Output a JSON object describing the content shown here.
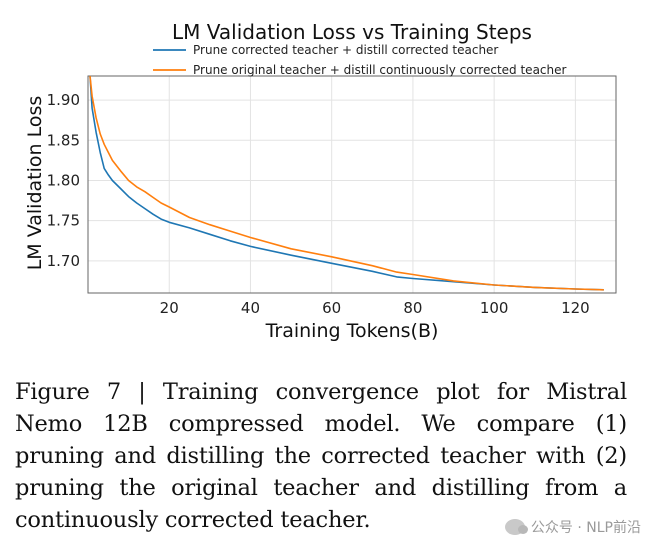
{
  "chart_data": {
    "type": "line",
    "title": "LM Validation Loss vs Training Steps",
    "xlabel": "Training Tokens(B)",
    "ylabel": "LM Validation Loss",
    "xlim": [
      0,
      130
    ],
    "ylim": [
      1.66,
      1.93
    ],
    "xticks": [
      20,
      40,
      60,
      80,
      100,
      120
    ],
    "yticks": [
      1.7,
      1.75,
      1.8,
      1.85,
      1.9
    ],
    "grid": true,
    "legend": "top",
    "series": [
      {
        "name": "Prune corrected teacher + distill corrected teacher",
        "color": "#1f77b4",
        "x": [
          0.5,
          1,
          2,
          3,
          4,
          5,
          6,
          8,
          10,
          12,
          14,
          16,
          18,
          20,
          25,
          30,
          35,
          40,
          50,
          60,
          70,
          76,
          80,
          90,
          100,
          110,
          120,
          127
        ],
        "y": [
          1.93,
          1.89,
          1.86,
          1.835,
          1.815,
          1.807,
          1.8,
          1.79,
          1.78,
          1.772,
          1.765,
          1.758,
          1.752,
          1.748,
          1.741,
          1.733,
          1.725,
          1.718,
          1.707,
          1.697,
          1.687,
          1.68,
          1.678,
          1.674,
          1.67,
          1.667,
          1.665,
          1.664
        ]
      },
      {
        "name": "Prune original teacher + distill continuously corrected teacher",
        "color": "#ff7f0e",
        "x": [
          0.5,
          1,
          2,
          3,
          4,
          5,
          6,
          8,
          10,
          12,
          14,
          16,
          18,
          20,
          25,
          30,
          35,
          40,
          50,
          60,
          70,
          76,
          80,
          90,
          100,
          110,
          120,
          127
        ],
        "y": [
          1.93,
          1.905,
          1.878,
          1.858,
          1.845,
          1.835,
          1.825,
          1.812,
          1.8,
          1.792,
          1.786,
          1.779,
          1.772,
          1.767,
          1.754,
          1.745,
          1.737,
          1.729,
          1.715,
          1.705,
          1.694,
          1.686,
          1.683,
          1.675,
          1.67,
          1.667,
          1.665,
          1.664
        ]
      }
    ]
  },
  "caption": "Figure 7 | Training convergence plot for Mistral Nemo 12B compressed model. We compare (1) pruning and distilling the corrected teacher with (2) pruning the original teacher and distilling from a continuously corrected teacher.",
  "watermark": "公众号 · NLP前沿"
}
